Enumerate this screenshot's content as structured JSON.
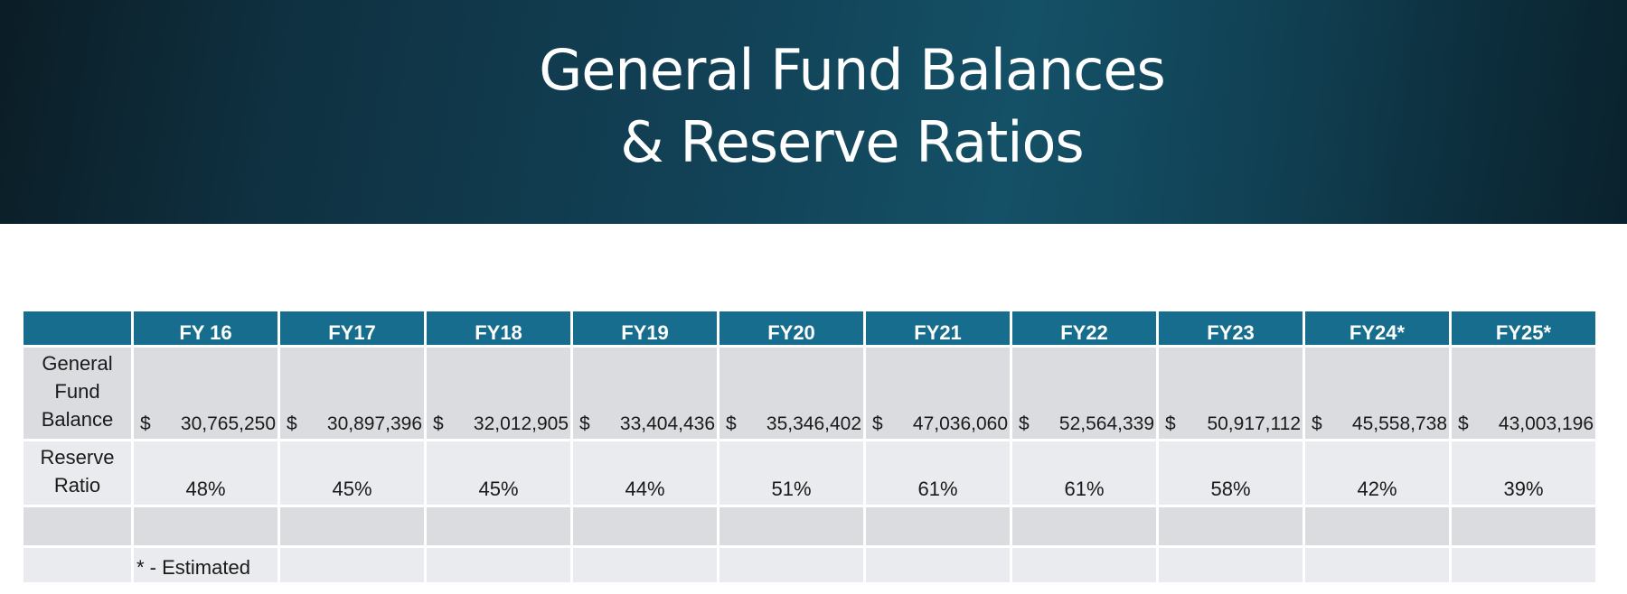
{
  "title": {
    "line1": "General Fund Balances",
    "line2": "& Reserve Ratios"
  },
  "table": {
    "columns": [
      "FY 16",
      "FY17",
      "FY18",
      "FY19",
      "FY20",
      "FY21",
      "FY22",
      "FY23",
      "FY24*",
      "FY25*"
    ],
    "balance": {
      "label": "General Fund Balance",
      "currency_symbol": "$",
      "values": [
        "30,765,250",
        "30,897,396",
        "32,012,905",
        "33,404,436",
        "35,346,402",
        "47,036,060",
        "52,564,339",
        "50,917,112",
        "45,558,738",
        "43,003,196"
      ]
    },
    "ratio": {
      "label": "Reserve Ratio",
      "values": [
        "48%",
        "45%",
        "45%",
        "44%",
        "51%",
        "61%",
        "61%",
        "58%",
        "42%",
        "39%"
      ]
    },
    "footnote": "* - Estimated"
  },
  "colors": {
    "header_bg": "#176d8d",
    "banner_dark": "#0b1d26",
    "banner_mid": "#145066",
    "row_dark": "#dadcdf",
    "row_light": "#eaebee"
  }
}
